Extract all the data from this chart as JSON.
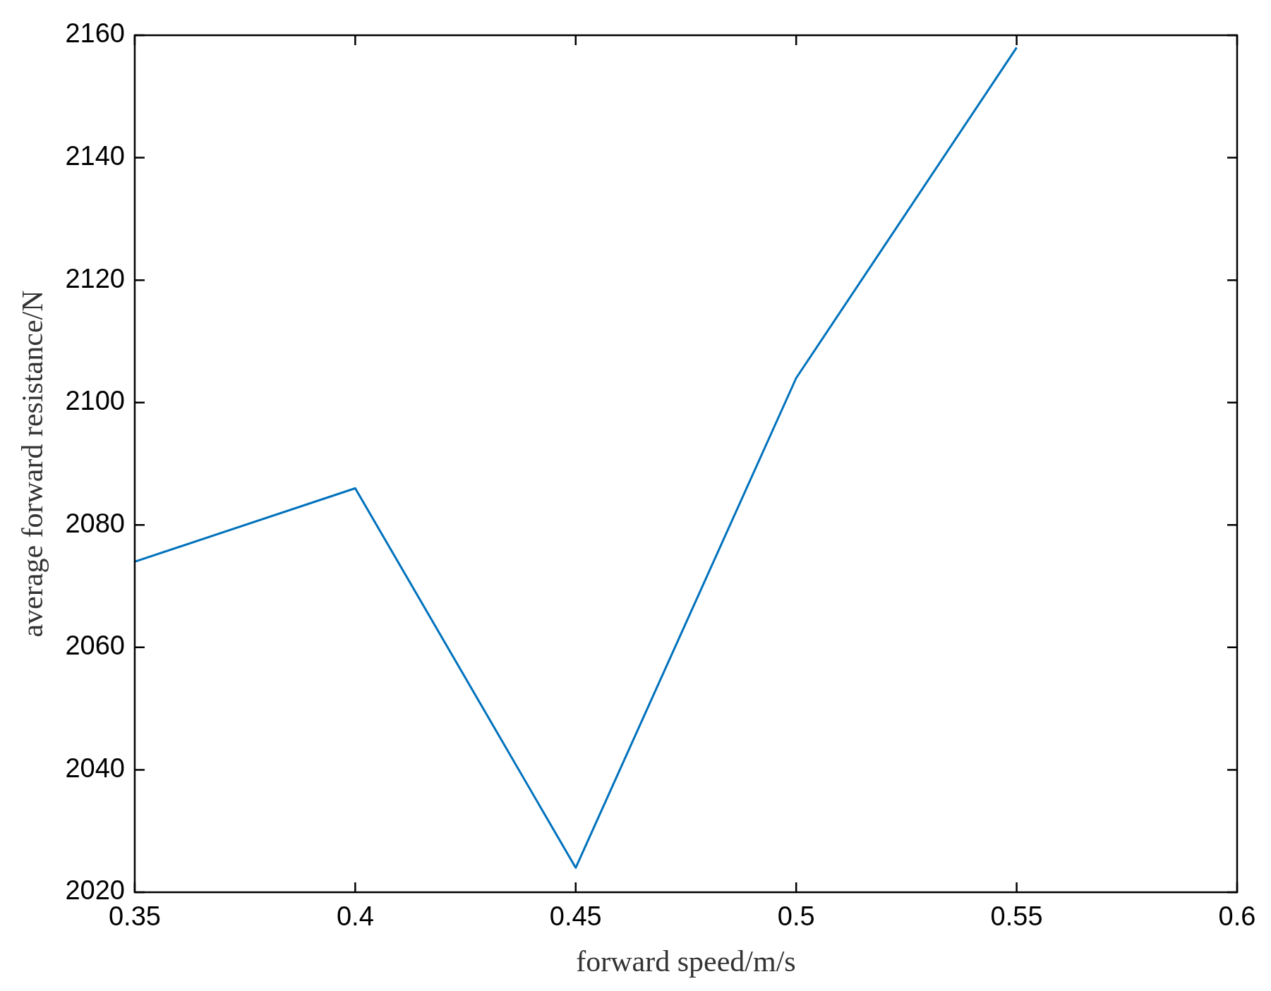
{
  "chart_data": {
    "type": "line",
    "xlabel": "forward speed/m/s",
    "ylabel": "average forward resistance/N",
    "x": [
      0.35,
      0.4,
      0.45,
      0.5,
      0.55
    ],
    "series": [
      {
        "color": "#0072bd",
        "values": [
          2074,
          2086,
          2024,
          2104,
          2158
        ]
      }
    ],
    "xlim": [
      0.35,
      0.6
    ],
    "xticks": [
      0.35,
      0.4,
      0.45,
      0.5,
      0.55,
      0.6
    ],
    "ylim": [
      2020,
      2160
    ],
    "yticks": [
      2020,
      2040,
      2060,
      2080,
      2100,
      2120,
      2140,
      2160
    ],
    "grid": false,
    "legend": false,
    "marker": "none",
    "line_style": "solid"
  }
}
